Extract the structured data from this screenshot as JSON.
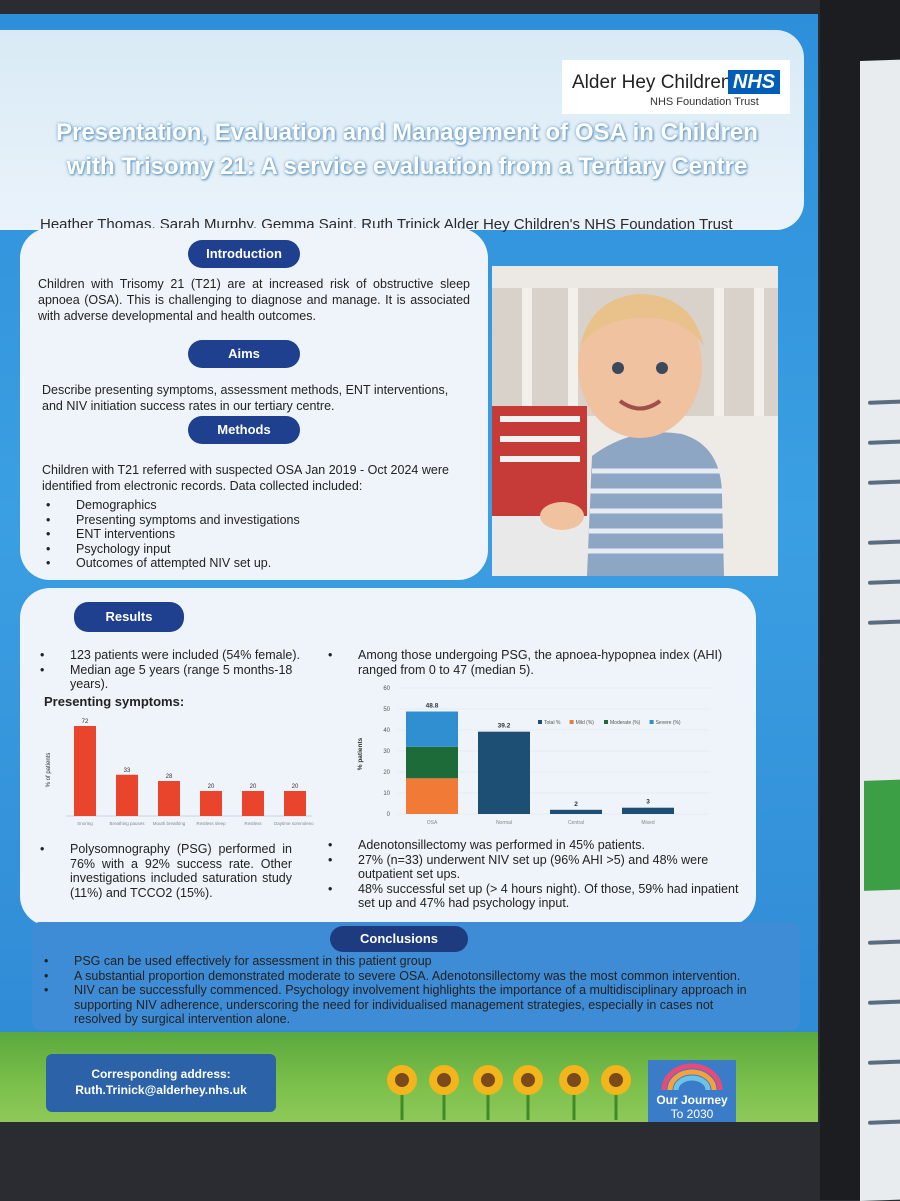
{
  "header": {
    "logo": {
      "name": "Alder Hey Children's",
      "badge": "NHS",
      "trust": "NHS Foundation Trust"
    },
    "title_line1": "Presentation, Evaluation and Management of OSA in Children",
    "title_line2": "with Trisomy 21: A service evaluation from a Tertiary Centre",
    "authors": "Heather Thomas, Sarah Murphy, Gemma Saint, Ruth Trinick  Alder Hey Children's NHS Foundation Trust"
  },
  "introduction": {
    "heading": "Introduction",
    "text": "Children with Trisomy 21 (T21) are at increased risk of obstructive sleep apnoea (OSA). This is  challenging to diagnose and manage. It is associated with adverse developmental and health outcomes."
  },
  "aims": {
    "heading": "Aims",
    "text": "Describe presenting symptoms, assessment methods, ENT interventions, and NIV initiation success rates in our tertiary centre."
  },
  "methods": {
    "heading": "Methods",
    "text": "Children with T21 referred with suspected OSA Jan 2019 - Oct 2024 were identified from electronic records. Data collected included:",
    "items": [
      "Demographics",
      "Presenting symptoms and investigations",
      "ENT interventions",
      "Psychology input",
      "Outcomes of attempted NIV set up."
    ]
  },
  "results": {
    "heading": "Results",
    "left_bullets": [
      "123 patients were included (54% female).",
      "Median age 5 years (range 5 months-18 years)."
    ],
    "symptoms_heading": "Presenting symptoms:",
    "left_bottom_bullets": [
      "Polysomnography (PSG) performed in 76% with a 92% success rate. Other investigations included saturation study (11%) and TCCO2 (15%)."
    ],
    "right_top_bullets": [
      "Among those undergoing PSG, the apnoea-hypopnea index (AHI) ranged from 0 to 47 (median 5)."
    ],
    "right_bottom_bullets": [
      "Adenotonsillectomy was performed in 45% patients.",
      "27% (n=33) underwent NIV set up (96% AHI >5) and 48% were outpatient set ups.",
      "48% successful set up (> 4 hours night). Of those, 59% had inpatient set up and 47% had psychology input."
    ]
  },
  "conclusions": {
    "heading": "Conclusions",
    "items": [
      "PSG can be used effectively for assessment in this patient group",
      "A substantial proportion demonstrated moderate to severe OSA. Adenotonsillectomy was the most common intervention.",
      "NIV can be successfully commenced. Psychology involvement highlights the importance of a multidisciplinary approach in supporting NIV adherence, underscoring the need for individualised management strategies, especially in cases not resolved by surgical intervention alone."
    ]
  },
  "footer": {
    "address_label": "Corresponding address:",
    "address_email": "Ruth.Trinick@alderhey.nhs.uk",
    "journey_line1": "Our Journey",
    "journey_line2": "To 2030"
  },
  "chart_data": [
    {
      "type": "bar",
      "title": "Presenting symptoms:",
      "categories": [
        "Snoring",
        "Breathing pauses",
        "Mouth breathing",
        "Restless sleep",
        "Restless",
        "Daytime somnolence"
      ],
      "values": [
        72,
        33,
        28,
        20,
        20,
        20
      ],
      "ylabel": "% of patients",
      "ylim": [
        0,
        80
      ],
      "color": "#e8452c"
    },
    {
      "type": "bar",
      "stacked": true,
      "categories": [
        "OSA",
        "Normal",
        "Central",
        "Mixed"
      ],
      "totals": [
        48.8,
        39.2,
        2,
        3
      ],
      "series": [
        {
          "name": "Total %",
          "values": [
            0,
            39.2,
            2,
            3
          ],
          "color": "#1d4e74"
        },
        {
          "name": "Mild (%)",
          "values": [
            17,
            0,
            0,
            0
          ],
          "color": "#f07a36"
        },
        {
          "name": "Moderate (%)",
          "values": [
            15,
            0,
            0,
            0
          ],
          "color": "#1e6b3a"
        },
        {
          "name": "Severe (%)",
          "values": [
            16.8,
            0,
            0,
            0
          ],
          "color": "#2f8fd0"
        }
      ],
      "ylabel": "% patients",
      "yticks": [
        0,
        10,
        20,
        30,
        40,
        50,
        60
      ],
      "ylim": [
        0,
        60
      ]
    }
  ]
}
